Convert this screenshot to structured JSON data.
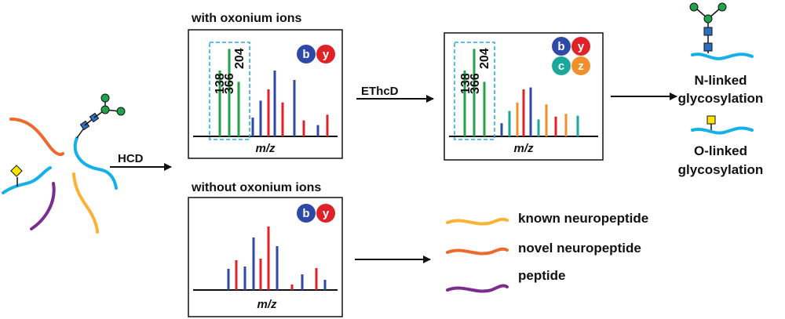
{
  "title_with": "with oxonium ions",
  "title_without": "without oxonium ions",
  "hcd": "HCD",
  "ethcd": "EThcD",
  "mz": "m/z",
  "ions": {
    "b": "b",
    "y": "y",
    "c": "c",
    "z": "z"
  },
  "oxonium": [
    "138",
    "366",
    "204"
  ],
  "n_linked": [
    "N-linked",
    "glycosylation"
  ],
  "o_linked": [
    "O-linked",
    "glycosylation"
  ],
  "legend": {
    "known": "known neuropeptide",
    "novel": "novel neuropeptide",
    "peptide": "peptide"
  },
  "colors": {
    "green": "#22a24a",
    "blue": "#2f4aa6",
    "red": "#e02128",
    "teal": "#1aa79c",
    "orange": "#f0902a",
    "yellow_orange": "#f9b233",
    "dark_orange": "#ee6a2c",
    "purple": "#7b2d8f",
    "cyan": "#16b0e8",
    "dashed": "#29a8e0"
  },
  "spectra": {
    "with": [
      {
        "c": "green",
        "h": 0.7
      },
      {
        "c": "green",
        "h": 0.93
      },
      {
        "c": "green",
        "h": 0.58
      },
      {
        "c": "blue",
        "h": 0.2
      },
      {
        "c": "blue",
        "h": 0.38
      },
      {
        "c": "red",
        "h": 0.5
      },
      {
        "c": "blue",
        "h": 0.7
      },
      {
        "c": "red",
        "h": 0.36
      },
      {
        "c": "blue",
        "h": 0.6
      },
      {
        "c": "red",
        "h": 0.17
      },
      {
        "c": "blue",
        "h": 0.12
      },
      {
        "c": "red",
        "h": 0.23
      }
    ],
    "ethcd": [
      {
        "c": "green",
        "h": 0.7
      },
      {
        "c": "green",
        "h": 0.93
      },
      {
        "c": "green",
        "h": 0.58
      },
      {
        "c": "blue",
        "h": 0.14
      },
      {
        "c": "teal",
        "h": 0.27
      },
      {
        "c": "orange",
        "h": 0.36
      },
      {
        "c": "red",
        "h": 0.5
      },
      {
        "c": "blue",
        "h": 0.52
      },
      {
        "c": "teal",
        "h": 0.18
      },
      {
        "c": "orange",
        "h": 0.34
      },
      {
        "c": "red",
        "h": 0.21
      },
      {
        "c": "orange",
        "h": 0.24
      },
      {
        "c": "teal",
        "h": 0.22
      }
    ],
    "without": [
      {
        "c": "blue",
        "h": 0.27
      },
      {
        "c": "red",
        "h": 0.38
      },
      {
        "c": "blue",
        "h": 0.3
      },
      {
        "c": "blue",
        "h": 0.67
      },
      {
        "c": "red",
        "h": 0.4
      },
      {
        "c": "red",
        "h": 0.81
      },
      {
        "c": "blue",
        "h": 0.56
      },
      {
        "c": "red",
        "h": 0.07
      },
      {
        "c": "blue",
        "h": 0.2
      },
      {
        "c": "red",
        "h": 0.28
      },
      {
        "c": "blue",
        "h": 0.13
      }
    ]
  }
}
